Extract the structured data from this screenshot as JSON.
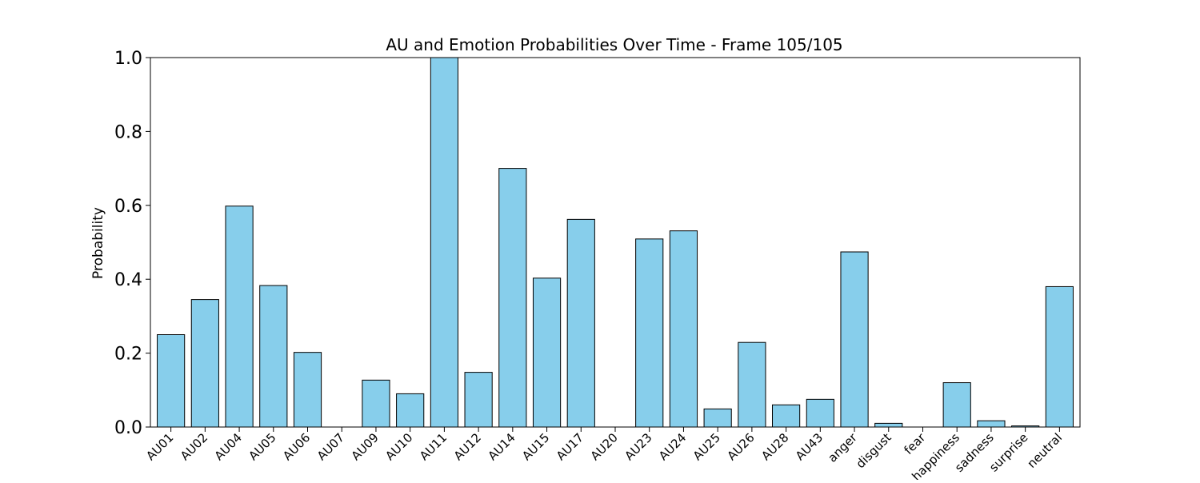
{
  "chart_data": {
    "type": "bar",
    "title": "AU and Emotion Probabilities Over Time - Frame 105/105",
    "xlabel": "",
    "ylabel": "Probability",
    "ylim": [
      0,
      1
    ],
    "yticks": [
      "0.0",
      "0.2",
      "0.4",
      "0.6",
      "0.8",
      "1.0"
    ],
    "ytick_values": [
      0,
      0.2,
      0.4,
      0.6,
      0.8,
      1.0
    ],
    "grid": false,
    "bar_color": "#87ceeb",
    "edge_color": "#000000",
    "categories": [
      "AU01",
      "AU02",
      "AU04",
      "AU05",
      "AU06",
      "AU07",
      "AU09",
      "AU10",
      "AU11",
      "AU12",
      "AU14",
      "AU15",
      "AU17",
      "AU20",
      "AU23",
      "AU24",
      "AU25",
      "AU26",
      "AU28",
      "AU43",
      "anger",
      "disgust",
      "fear",
      "happiness",
      "sadness",
      "surprise",
      "neutral"
    ],
    "values": [
      0.25,
      0.345,
      0.598,
      0.383,
      0.202,
      0.0,
      0.127,
      0.09,
      1.0,
      0.148,
      0.7,
      0.403,
      0.562,
      0.0,
      0.509,
      0.531,
      0.049,
      0.229,
      0.06,
      0.075,
      0.474,
      0.01,
      0.0,
      0.12,
      0.017,
      0.003,
      0.38
    ]
  }
}
